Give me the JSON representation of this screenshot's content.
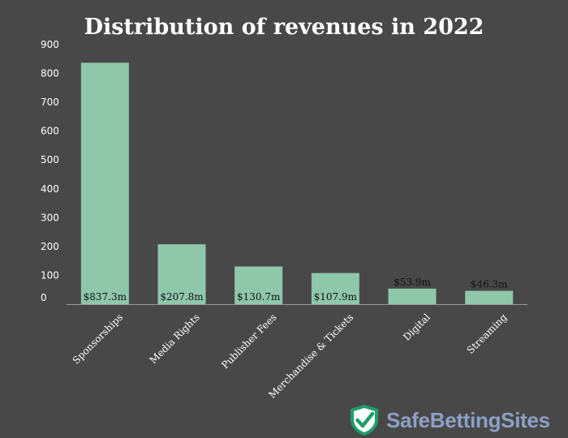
{
  "chart_data": {
    "type": "bar",
    "title": "Distribution of revenues in 2022",
    "categories": [
      "Sponsorships",
      "Media Rights",
      "Publisher Fees",
      "Merchandise & Tickets",
      "Digital",
      "Streaming"
    ],
    "values": [
      837.3,
      207.8,
      130.7,
      107.9,
      53.9,
      46.3
    ],
    "data_labels": [
      "$837.3m",
      "$207.8m",
      "$130.7m",
      "$107.9m",
      "$53.9m",
      "$46.3m"
    ],
    "yticks": [
      "0",
      "100",
      "200",
      "300",
      "400",
      "500",
      "600",
      "700",
      "800",
      "900"
    ],
    "ylim": [
      0,
      900
    ],
    "xlabel": "",
    "ylabel": "",
    "grid": false,
    "bar_color": "#8fc7ab"
  },
  "brand": {
    "name": "SafeBettingSites",
    "logo_icon": "shield-check-icon",
    "shield_color": "#1e9e6a"
  },
  "colors": {
    "background": "#484848",
    "title": "#ffffff",
    "axis_text": "#ffffff",
    "label_text": "#111111",
    "brand_text": "#8da0c7"
  }
}
